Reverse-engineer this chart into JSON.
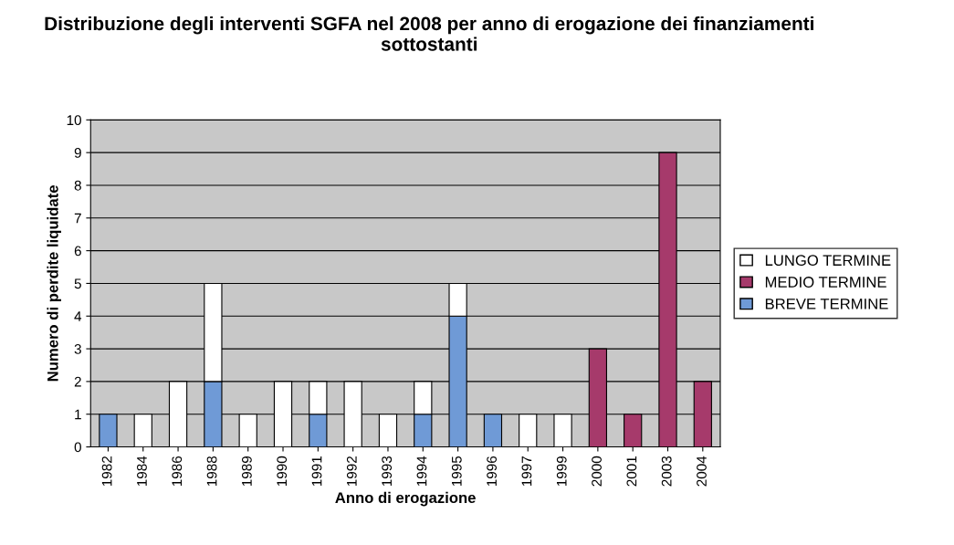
{
  "chart_data": {
    "type": "bar",
    "title": "Distribuzione degli interventi SGFA nel 2008 per anno di erogazione dei finanziamenti sottostanti",
    "xlabel": "Anno di erogazione",
    "ylabel": "Numero di perdite liquidate",
    "categories": [
      "1982",
      "1984",
      "1986",
      "1988",
      "1989",
      "1990",
      "1991",
      "1992",
      "1993",
      "1994",
      "1995",
      "1996",
      "1997",
      "1999",
      "2000",
      "2001",
      "2003",
      "2004"
    ],
    "stacked": true,
    "series": [
      {
        "name": "BREVE TERMINE",
        "color": "#6f9ad6",
        "values": [
          1,
          0,
          0,
          2,
          0,
          0,
          1,
          0,
          0,
          1,
          4,
          1,
          0,
          0,
          0,
          0,
          0,
          0
        ]
      },
      {
        "name": "MEDIO TERMINE",
        "color": "#a63a6b",
        "values": [
          0,
          0,
          0,
          0,
          0,
          0,
          0,
          0,
          0,
          0,
          0,
          0,
          0,
          0,
          3,
          1,
          9,
          2
        ]
      },
      {
        "name": "LUNGO TERMINE",
        "color": "#ffffff",
        "values": [
          0,
          1,
          2,
          3,
          1,
          2,
          1,
          2,
          1,
          1,
          1,
          0,
          1,
          1,
          0,
          0,
          0,
          0
        ]
      }
    ],
    "ylim": [
      0,
      10
    ],
    "yticks": [
      0,
      1,
      2,
      3,
      4,
      5,
      6,
      7,
      8,
      9,
      10
    ],
    "grid": "y",
    "legend": "right"
  }
}
